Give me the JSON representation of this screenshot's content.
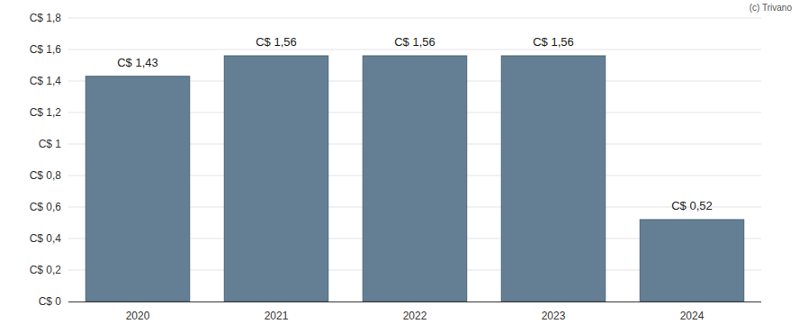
{
  "chart_data": {
    "type": "bar",
    "categories": [
      "2020",
      "2021",
      "2022",
      "2023",
      "2024"
    ],
    "values": [
      1.43,
      1.56,
      1.56,
      1.56,
      0.52
    ],
    "value_labels": [
      "C$ 1,43",
      "C$ 1,56",
      "C$ 1,56",
      "C$ 1,56",
      "C$ 0,52"
    ],
    "data_labels": true,
    "color": "#647f93",
    "ylim": [
      0,
      1.8
    ],
    "yticks": [
      {
        "value": 0,
        "label": "C$ 0"
      },
      {
        "value": 0.2,
        "label": "C$ 0,2"
      },
      {
        "value": 0.4,
        "label": "C$ 0,4"
      },
      {
        "value": 0.6,
        "label": "C$ 0,6"
      },
      {
        "value": 0.8,
        "label": "C$ 0,8"
      },
      {
        "value": 1,
        "label": "C$ 1"
      },
      {
        "value": 1.2,
        "label": "C$ 1,2"
      },
      {
        "value": 1.4,
        "label": "C$ 1,4"
      },
      {
        "value": 1.6,
        "label": "C$ 1,6"
      },
      {
        "value": 1.8,
        "label": "C$ 1,8"
      }
    ],
    "grid": true,
    "annotations": [
      "(c) Trivano"
    ]
  }
}
